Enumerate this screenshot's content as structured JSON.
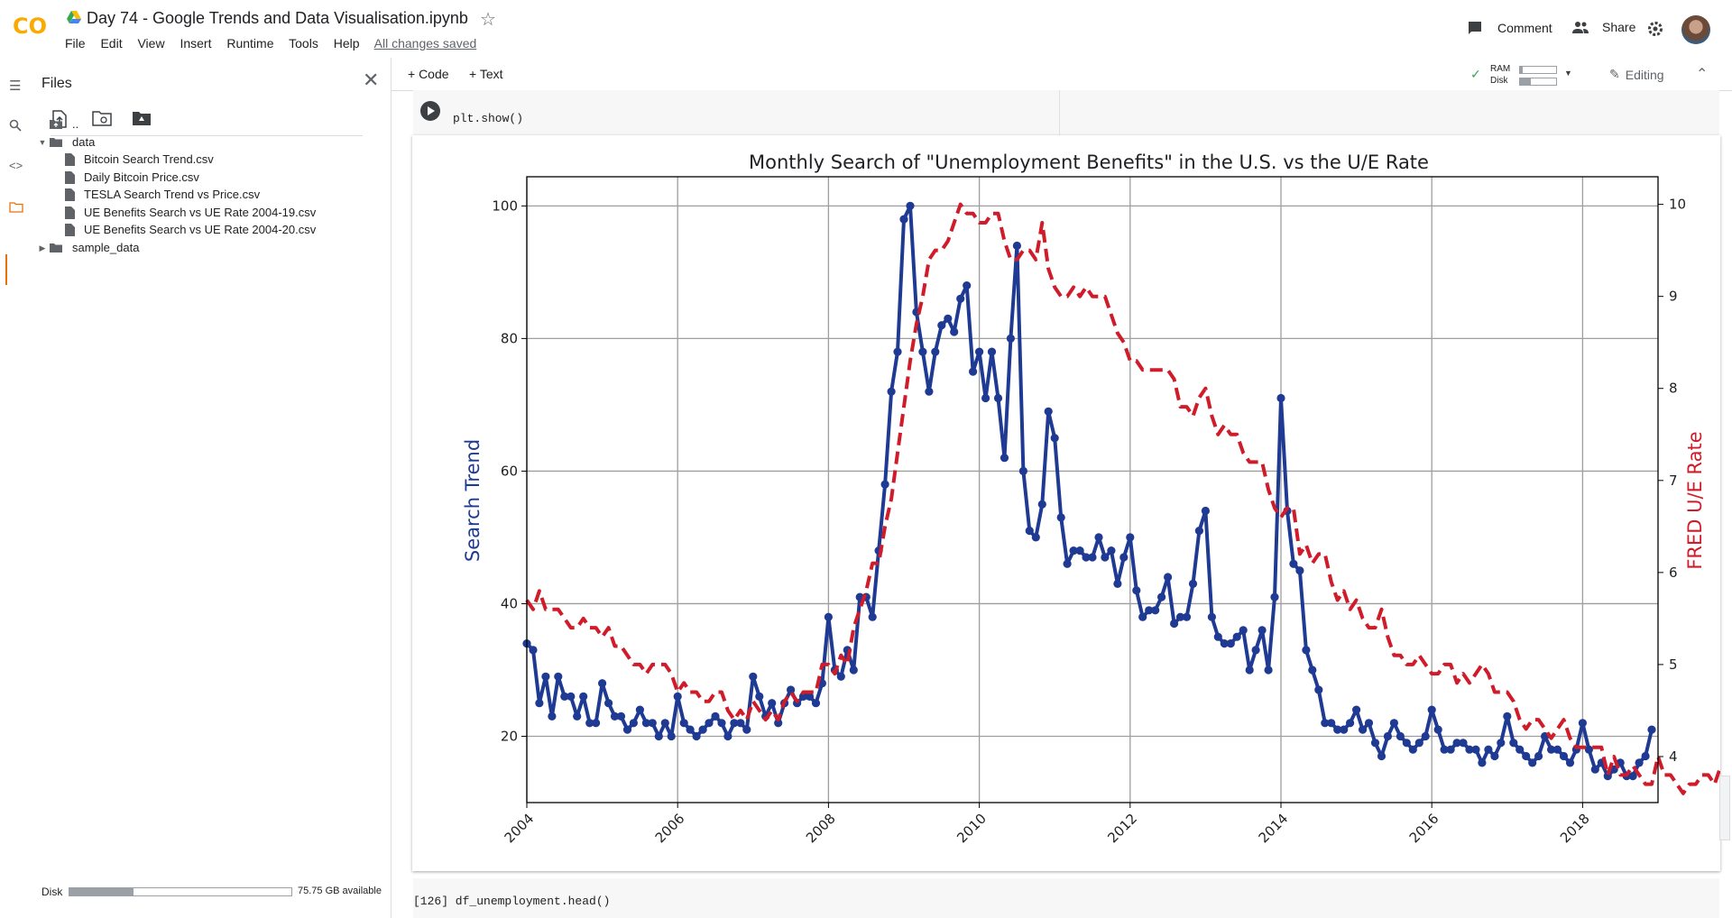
{
  "app": {
    "logo_text": "CO",
    "doc_title": "Day 74 - Google Trends and Data Visualisation.ipynb"
  },
  "menu": [
    "File",
    "Edit",
    "View",
    "Insert",
    "Runtime",
    "Tools",
    "Help"
  ],
  "saved_status": "All changes saved",
  "header_actions": {
    "comment": "Comment",
    "share": "Share"
  },
  "files_pane": {
    "title": "Files",
    "tree": [
      {
        "label": "..",
        "type": "up"
      },
      {
        "label": "data",
        "type": "folder-open"
      },
      {
        "label": "Bitcoin Search Trend.csv",
        "type": "file"
      },
      {
        "label": "Daily Bitcoin Price.csv",
        "type": "file"
      },
      {
        "label": "TESLA Search Trend vs Price.csv",
        "type": "file"
      },
      {
        "label": "UE Benefits Search vs UE Rate 2004-19.csv",
        "type": "file"
      },
      {
        "label": "UE Benefits Search vs UE Rate 2004-20.csv",
        "type": "file"
      },
      {
        "label": "sample_data",
        "type": "folder-closed"
      }
    ],
    "disk_label": "Disk",
    "disk_available": "75.75 GB available",
    "disk_used_fraction": 0.29
  },
  "notebook_toolbar": {
    "add_code": "+ Code",
    "add_text": "+ Text",
    "ram": "RAM",
    "disk": "Disk",
    "editing": "Editing"
  },
  "cells": {
    "cell1_code": "plt.show()",
    "cell2_code": "[126] df_unemployment.head()"
  },
  "chart_data": {
    "type": "line",
    "title": "Monthly Search of \"Unemployment Benefits\" in the U.S. vs the U/E Rate",
    "xlabel": "",
    "ylabel": "Search Trend",
    "ylabel_right": "FRED U/E Rate",
    "x_ticks": [
      "2004",
      "2006",
      "2008",
      "2010",
      "2012",
      "2014",
      "2016",
      "2018"
    ],
    "xlim": [
      2004.0,
      2019.0
    ],
    "ylim": [
      10,
      104.4
    ],
    "y_ticks": [
      20,
      40,
      60,
      80,
      100
    ],
    "ylim_right": [
      3.5,
      10.3
    ],
    "y_ticks_right": [
      4,
      5,
      6,
      7,
      8,
      9,
      10
    ],
    "grid": true,
    "series": [
      {
        "name": "Search Trend",
        "axis": "left",
        "color": "#1f3a93",
        "style": "solid-marker",
        "start_year": 2004,
        "interval": "monthly",
        "values": [
          34,
          33,
          25,
          29,
          23,
          29,
          26,
          26,
          23,
          26,
          22,
          22,
          28,
          25,
          23,
          23,
          21,
          22,
          24,
          22,
          22,
          20,
          22,
          20,
          26,
          22,
          21,
          20,
          21,
          22,
          23,
          22,
          20,
          22,
          22,
          21,
          29,
          26,
          23,
          25,
          22,
          25,
          27,
          25,
          26,
          26,
          25,
          28,
          38,
          30,
          29,
          33,
          30,
          41,
          41,
          38,
          48,
          58,
          72,
          78,
          98,
          100,
          84,
          78,
          72,
          78,
          82,
          83,
          81,
          86,
          88,
          75,
          78,
          71,
          78,
          71,
          62,
          80,
          94,
          60,
          51,
          50,
          55,
          69,
          65,
          53,
          46,
          48,
          48,
          47,
          47,
          50,
          47,
          48,
          43,
          47,
          50,
          42,
          38,
          39,
          39,
          41,
          44,
          37,
          38,
          38,
          43,
          51,
          54,
          38,
          35,
          34,
          34,
          35,
          36,
          30,
          33,
          36,
          30,
          41,
          71,
          54,
          46,
          45,
          33,
          30,
          27,
          22,
          22,
          21,
          21,
          22,
          24,
          21,
          22,
          19,
          17,
          20,
          22,
          20,
          19,
          18,
          19,
          20,
          24,
          21,
          18,
          18,
          19,
          19,
          18,
          18,
          16,
          18,
          17,
          19,
          23,
          19,
          18,
          17,
          16,
          17,
          20,
          18,
          18,
          17,
          16,
          18,
          22,
          18,
          15,
          16,
          14,
          15,
          16,
          14,
          14,
          16,
          17,
          21
        ]
      },
      {
        "name": "FRED U/E Rate",
        "axis": "right",
        "color": "#d01c2a",
        "style": "dashed",
        "start_year": 2004,
        "interval": "monthly",
        "values": [
          5.7,
          5.6,
          5.8,
          5.6,
          5.6,
          5.6,
          5.5,
          5.4,
          5.4,
          5.5,
          5.4,
          5.4,
          5.3,
          5.4,
          5.2,
          5.2,
          5.1,
          5.0,
          5.0,
          4.9,
          5.0,
          5.0,
          5.0,
          4.9,
          4.7,
          4.8,
          4.7,
          4.7,
          4.6,
          4.6,
          4.7,
          4.7,
          4.5,
          4.4,
          4.5,
          4.4,
          4.6,
          4.5,
          4.4,
          4.5,
          4.4,
          4.6,
          4.7,
          4.6,
          4.7,
          4.7,
          4.7,
          5.0,
          5.0,
          4.9,
          5.1,
          5.0,
          5.4,
          5.6,
          5.8,
          6.1,
          6.1,
          6.5,
          6.8,
          7.3,
          7.8,
          8.3,
          8.7,
          9.0,
          9.4,
          9.5,
          9.5,
          9.6,
          9.8,
          10.0,
          9.9,
          9.9,
          9.8,
          9.8,
          9.9,
          9.9,
          9.6,
          9.4,
          9.4,
          9.5,
          9.5,
          9.4,
          9.8,
          9.3,
          9.1,
          9.0,
          9.0,
          9.1,
          9.0,
          9.1,
          9.0,
          9.0,
          9.0,
          8.8,
          8.6,
          8.5,
          8.3,
          8.3,
          8.2,
          8.2,
          8.2,
          8.2,
          8.2,
          8.1,
          7.8,
          7.8,
          7.7,
          7.9,
          8.0,
          7.7,
          7.5,
          7.6,
          7.5,
          7.5,
          7.3,
          7.2,
          7.2,
          7.2,
          6.9,
          6.7,
          6.6,
          6.7,
          6.7,
          6.2,
          6.3,
          6.1,
          6.2,
          6.2,
          5.9,
          5.7,
          5.8,
          5.6,
          5.7,
          5.5,
          5.4,
          5.4,
          5.6,
          5.3,
          5.1,
          5.1,
          5.0,
          5.0,
          5.1,
          5.0,
          4.9,
          4.9,
          5.0,
          5.0,
          4.8,
          4.9,
          4.8,
          4.9,
          5.0,
          4.9,
          4.7,
          4.7,
          4.7,
          4.6,
          4.4,
          4.3,
          4.4,
          4.4,
          4.3,
          4.2,
          4.3,
          4.4,
          4.2,
          4.1,
          4.1,
          4.1,
          4.1,
          4.1,
          3.8,
          4.0,
          3.8,
          3.8,
          3.9,
          3.8,
          3.7,
          3.7,
          4.0,
          3.8,
          3.8,
          3.7,
          3.6,
          3.7,
          3.7,
          3.8,
          3.8,
          3.7,
          3.9
        ]
      }
    ]
  }
}
